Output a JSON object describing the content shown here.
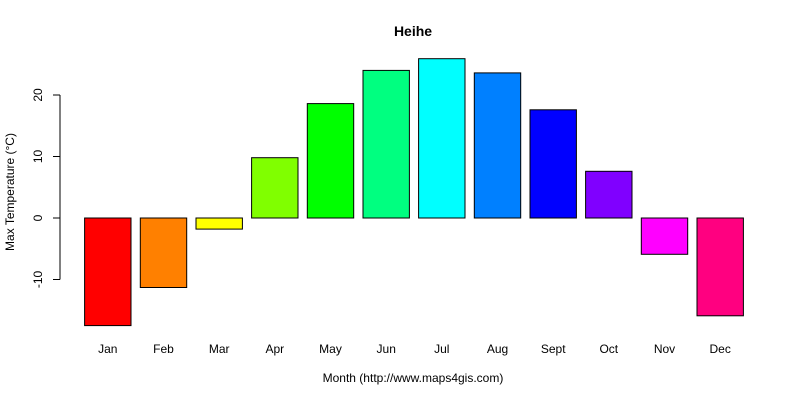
{
  "chart_data": {
    "type": "bar",
    "title": "Heihe",
    "xlabel": "Month (http://www.maps4gis.com)",
    "ylabel": "Max Temperature (°C)",
    "categories": [
      "Jan",
      "Feb",
      "Mar",
      "Apr",
      "May",
      "Jun",
      "Jul",
      "Aug",
      "Sept",
      "Oct",
      "Nov",
      "Dec"
    ],
    "values": [
      -17.5,
      -11.3,
      -1.8,
      9.8,
      18.6,
      24.0,
      25.9,
      23.6,
      17.6,
      7.6,
      -5.9,
      -15.9
    ],
    "colors": [
      "#ff0000",
      "#ff8000",
      "#ffff00",
      "#80ff00",
      "#00ff00",
      "#00ff80",
      "#00ffff",
      "#0080ff",
      "#0000ff",
      "#8000ff",
      "#ff00ff",
      "#ff0080"
    ],
    "yticks": [
      -10,
      0,
      10,
      20
    ],
    "ylim": [
      -17.5,
      25.9
    ],
    "grid": false,
    "legend": "none"
  }
}
